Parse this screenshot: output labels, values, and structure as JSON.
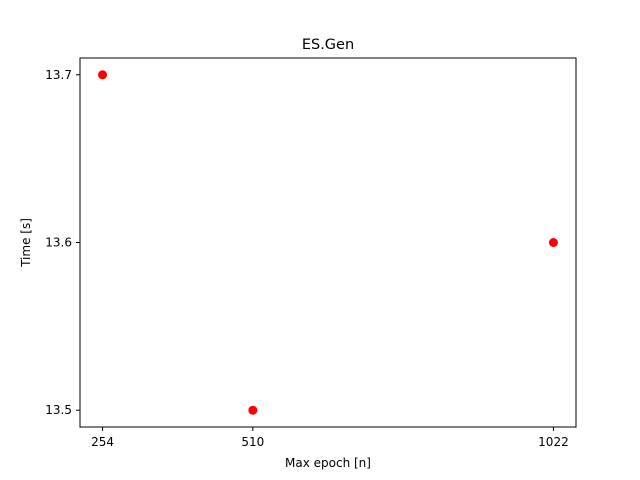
{
  "chart_data": {
    "type": "scatter",
    "title": "ES.Gen",
    "xlabel": "Max epoch [n]",
    "ylabel": "Time [s]",
    "x": [
      254,
      510,
      1022
    ],
    "y": [
      13.7,
      13.5,
      13.6
    ],
    "xticks": [
      254,
      510,
      1022
    ],
    "xtick_labels": [
      "254",
      "510",
      "1022"
    ],
    "yticks": [
      13.5,
      13.6,
      13.7
    ],
    "ytick_labels": [
      "13.5",
      "13.6",
      "13.7"
    ],
    "xlim": [
      215.6,
      1060.4
    ],
    "ylim": [
      13.49,
      13.71
    ],
    "marker_color": "#ff0000",
    "grid": false,
    "legend": "none"
  }
}
